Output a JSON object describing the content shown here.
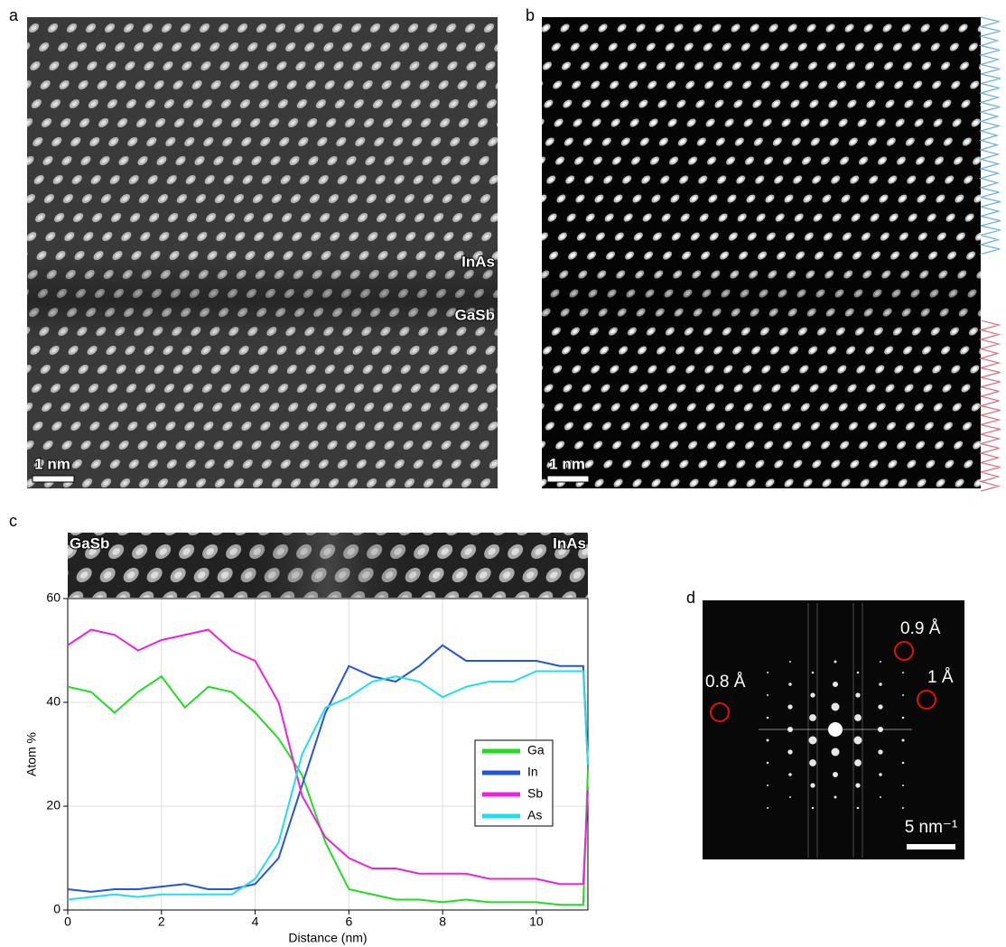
{
  "panels": {
    "a": {
      "label": "a",
      "annotations": [
        "InAs",
        "GaSb"
      ],
      "scale_bar": "1 nm"
    },
    "b": {
      "label": "b",
      "scale_bar": "1 nm"
    },
    "c": {
      "label": "c",
      "strip_labels": [
        "GaSb",
        "InAs"
      ]
    },
    "d": {
      "label": "d",
      "annotations": [
        "0.9 Å",
        "1 Å",
        "0.8 Å"
      ],
      "scale_bar": "5 nm⁻¹"
    }
  },
  "chart_data": {
    "type": "line",
    "xlabel": "Distance (nm)",
    "ylabel": "Atom %",
    "x": [
      0,
      0.5,
      1,
      1.5,
      2,
      2.5,
      3,
      3.5,
      4,
      4.5,
      5,
      5.5,
      6,
      6.5,
      7,
      7.5,
      8,
      8.5,
      9,
      9.5,
      10,
      10.5,
      11,
      11.1
    ],
    "series": [
      {
        "name": "Ga",
        "color": "#22dd22",
        "values": [
          43,
          42,
          38,
          42,
          45,
          39,
          43,
          42,
          38,
          33,
          26,
          13,
          4,
          3,
          2,
          2,
          1.5,
          2,
          1.5,
          1.5,
          1.5,
          1,
          1,
          27
        ]
      },
      {
        "name": "In",
        "color": "#2255dd",
        "values": [
          4,
          3.5,
          4,
          4,
          4.5,
          5,
          4,
          4,
          5,
          10,
          24,
          38,
          47,
          45,
          44,
          47,
          51,
          48,
          48,
          48,
          48,
          47,
          47,
          28
        ]
      },
      {
        "name": "Sb",
        "color": "#ee22dd",
        "values": [
          51,
          54,
          53,
          50,
          52,
          53,
          54,
          50,
          48,
          40,
          22,
          14,
          10,
          8,
          8,
          7,
          7,
          7,
          6,
          6,
          6,
          5,
          5,
          23
        ]
      },
      {
        "name": "As",
        "color": "#22ddee",
        "values": [
          2,
          2.5,
          3,
          2.5,
          3,
          3,
          3,
          3,
          6,
          13,
          30,
          39,
          41,
          44,
          45,
          44,
          41,
          43,
          44,
          44,
          46,
          46,
          46,
          28
        ]
      }
    ],
    "xlim": [
      0,
      11.1
    ],
    "ylim": [
      0,
      60
    ],
    "xticks": [
      0,
      2,
      4,
      6,
      8,
      10
    ],
    "yticks": [
      0,
      20,
      40,
      60
    ],
    "grid": true,
    "legend": "right"
  }
}
